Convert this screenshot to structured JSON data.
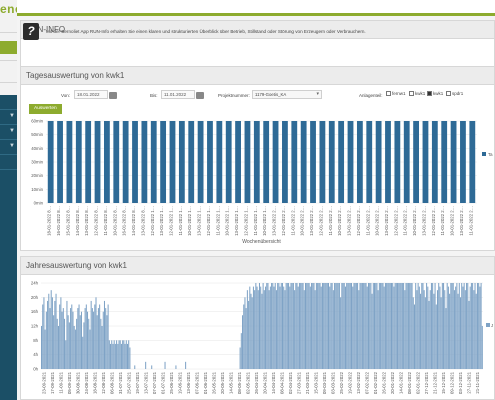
{
  "logo": {
    "text": "enet"
  },
  "info_panel": {
    "title": "RUN-INFO",
    "text": "Mit der Bernoliet App RUN-Info erhalten Sie einen klaren und strukturierten Überblick über Betrieb, Stillstand oder Störung von Erzeugern oder Verbrauchern."
  },
  "daily_panel": {
    "title": "Tagesauswertung von kwk1",
    "from_label": "Von:",
    "from_value": "18.01.2022",
    "to_label": "Bis:",
    "to_value": "11.01.2022",
    "project_label": "Projektnummer:",
    "project_value": "1179-Goetis_KA",
    "assets_label": "Anlagenteil:",
    "checkboxes": [
      {
        "label": "fernw1",
        "checked": false
      },
      {
        "label": "kwk1",
        "checked": false
      },
      {
        "label": "kwk1",
        "checked": true
      },
      {
        "label": "spdr1",
        "checked": false
      }
    ],
    "button": "Auswerten"
  },
  "colors": {
    "accent": "#8dab2e",
    "bar1": "#2e6a96",
    "bar2": "#7fa3c6",
    "sidebar": "#1b4f66"
  },
  "chart_data": [
    {
      "type": "bar",
      "title": "",
      "xlabel": "Wochenübersicht",
      "ylabel": "",
      "ylim": [
        0,
        60
      ],
      "y_ticks": [
        "0min",
        "10min",
        "20min",
        "30min",
        "40min",
        "50min",
        "60min"
      ],
      "legend": {
        "label": "Ta",
        "position": "right"
      },
      "categories": [
        "18-01-2022 8…",
        "16-01-2022 8…",
        "15-01-2022 8…",
        "14-01-2022 8…",
        "13-01-2022 8…",
        "12-01-2022 8…",
        "11-01-2022 8…",
        "10-01-2022 8…",
        "16-01-2022 8…",
        "14-01-2022 8…",
        "13-01-2022 8…",
        "12-01-2022 1…",
        "13-01-2022 1…",
        "12-01-2022 1…",
        "11-01-2022 1…",
        "10-01-2022 1…",
        "13-01-2022 1…",
        "12-01-2022 1…",
        "11-01-2022 1…",
        "10-01-2022 1…",
        "13-01-2022 1…",
        "12-01-2022 1…",
        "11-01-2022 1…",
        "10-01-2022 1…",
        "13-01-2022 2…",
        "12-01-2022 2…",
        "11-01-2022 2…",
        "10-01-2022 2…",
        "13-01-2022 2…",
        "12-01-2022 2…",
        "11-01-2022 2…",
        "10-01-2022 2…",
        "13-01-2022 2…",
        "12-01-2022 2…",
        "11-01-2022 2…",
        "10-01-2022 2…",
        "13-01-2022 2…",
        "12-01-2022 2…",
        "11-01-2022 2…",
        "10-01-2022 2…",
        "13-01-2022 2…",
        "12-01-2022 2…",
        "11-01-2022 2…",
        "10-01-2022 2…",
        "13-01-2022 2…",
        "11-01-2022 2…"
      ],
      "values": [
        60,
        60,
        60,
        60,
        60,
        60,
        60,
        60,
        60,
        60,
        60,
        60,
        60,
        60,
        60,
        60,
        60,
        60,
        60,
        60,
        60,
        60,
        60,
        60,
        60,
        60,
        60,
        60,
        60,
        60,
        60,
        60,
        60,
        60,
        60,
        60,
        60,
        60,
        60,
        60,
        60,
        60,
        60,
        60,
        60,
        60
      ]
    },
    {
      "type": "bar",
      "title": "Jahresauswertung von kwk1",
      "xlabel": "",
      "ylabel": "",
      "ylim": [
        0,
        24
      ],
      "y_ticks": [
        "0h",
        "4h",
        "8h",
        "12h",
        "16h",
        "20h",
        "24h"
      ],
      "legend": {
        "label": "J",
        "position": "right"
      },
      "x_ticks": [
        "23-09-2021",
        "17-09-2021",
        "11-09-2021",
        "05-09-2021",
        "30-08-2021",
        "24-08-2021",
        "18-08-2021",
        "12-08-2021",
        "06-08-2021",
        "31-07-2021",
        "25-07-2021",
        "19-07-2021",
        "13-07-2021",
        "07-07-2021",
        "01-07-2021",
        "25-06-2021",
        "19-06-2021",
        "13-06-2021",
        "07-06-2021",
        "01-06-2021",
        "26-05-2021",
        "20-05-2021",
        "14-05-2021",
        "08-05-2021",
        "02-05-2021",
        "26-04-2021",
        "20-04-2021",
        "14-04-2021",
        "08-04-2021",
        "02-04-2021",
        "27-03-2021",
        "21-03-2021",
        "15-03-2021",
        "09-03-2021",
        "03-03-2021",
        "25-02-2022",
        "19-02-2022",
        "13-02-2022",
        "07-02-2022",
        "01-02-2022",
        "26-01-2022",
        "20-01-2022",
        "14-01-2022",
        "08-01-2022",
        "02-01-2022",
        "27-12-2021",
        "21-12-2021",
        "15-12-2021",
        "09-12-2021",
        "03-12-2021",
        "27-11-2021",
        "21-11-2021"
      ],
      "values": [
        12,
        18,
        20,
        11,
        16,
        19,
        21,
        17,
        22,
        20,
        15,
        19,
        21,
        14,
        12,
        18,
        20,
        16,
        17,
        14,
        8,
        19,
        15,
        13,
        17,
        18,
        16,
        12,
        11,
        14,
        17,
        18,
        15,
        16,
        9,
        13,
        17,
        18,
        16,
        14,
        11,
        19,
        17,
        16,
        18,
        20,
        15,
        17,
        18,
        14,
        12,
        16,
        19,
        17,
        15,
        18,
        8,
        7,
        8,
        7,
        8,
        7,
        8,
        7,
        8,
        8,
        7,
        8,
        8,
        7,
        8,
        7,
        8,
        6,
        0,
        0,
        0,
        1,
        0,
        0,
        0,
        0,
        0,
        0,
        0,
        0,
        2,
        0,
        0,
        0,
        0,
        1,
        0,
        0,
        0,
        0,
        0,
        0,
        0,
        0,
        0,
        0,
        2,
        0,
        0,
        0,
        0,
        0,
        0,
        0,
        0,
        1,
        0,
        0,
        0,
        0,
        0,
        0,
        0,
        2,
        0,
        0,
        0,
        0,
        0,
        0,
        0,
        0,
        0,
        0,
        0,
        0,
        0,
        0,
        0,
        0,
        0,
        0,
        0,
        0,
        0,
        0,
        0,
        0,
        0,
        0,
        0,
        0,
        0,
        0,
        0,
        0,
        0,
        0,
        0,
        0,
        0,
        0,
        0,
        0,
        0,
        0,
        0,
        0,
        6,
        10,
        15,
        18,
        20,
        17,
        22,
        19,
        23,
        21,
        20,
        23,
        22,
        24,
        23,
        22,
        24,
        23,
        21,
        24,
        22,
        23,
        24,
        24,
        22,
        23,
        24,
        24,
        23,
        24,
        22,
        24,
        24,
        23,
        24,
        24,
        23,
        22,
        24,
        24,
        24,
        23,
        24,
        24,
        24,
        22,
        24,
        24,
        23,
        24,
        24,
        24,
        24,
        22,
        24,
        24,
        24,
        24,
        23,
        24,
        24,
        24,
        22,
        24,
        24,
        24,
        24,
        23,
        24,
        24,
        24,
        24,
        24,
        24,
        23,
        24,
        24,
        22,
        24,
        24,
        24,
        24,
        24,
        20,
        24,
        24,
        24,
        23,
        24,
        24,
        24,
        24,
        24,
        23,
        24,
        24,
        24,
        24,
        22,
        24,
        24,
        24,
        24,
        24,
        24,
        23,
        24,
        24,
        24,
        21,
        24,
        24,
        24,
        24,
        22,
        24,
        24,
        24,
        24,
        23,
        24,
        24,
        24,
        24,
        24,
        24,
        24,
        23,
        24,
        24,
        24,
        24,
        24,
        24,
        24,
        24,
        22,
        24,
        24,
        24,
        24,
        24,
        24,
        20,
        18,
        24,
        22,
        24,
        23,
        21,
        24,
        24,
        22,
        20,
        24,
        23,
        19,
        22,
        24,
        24,
        21,
        24,
        18,
        22,
        24,
        23,
        20,
        24,
        24,
        22,
        17,
        24,
        23,
        21,
        24,
        24,
        24,
        22,
        23,
        24,
        21,
        24,
        20,
        24,
        23,
        24,
        22,
        24,
        24,
        19,
        23,
        24,
        24,
        22,
        24,
        21,
        24,
        24,
        23,
        24,
        12
      ]
    }
  ]
}
